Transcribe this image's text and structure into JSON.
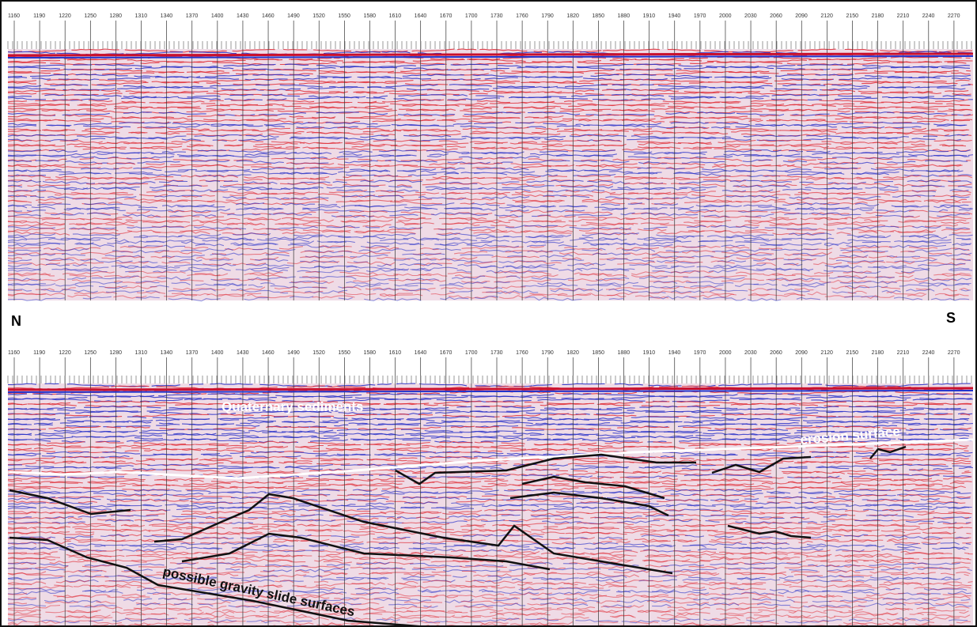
{
  "tick_labels": [
    "1160",
    "1190",
    "1220",
    "1250",
    "1280",
    "1310",
    "1340",
    "1370",
    "1400",
    "1430",
    "1460",
    "1490",
    "1520",
    "1550",
    "1580",
    "1610",
    "1640",
    "1670",
    "1700",
    "1730",
    "1760",
    "1790",
    "1820",
    "1850",
    "1880",
    "1910",
    "1940",
    "1970",
    "2000",
    "2030",
    "2060",
    "2090",
    "2120",
    "2150",
    "2180",
    "2210",
    "2240",
    "2270"
  ],
  "compass": {
    "north": "N",
    "south": "S"
  },
  "annotations": {
    "sediments": "Quaternary sediments",
    "erosion": "erosion surface",
    "slides": "possible gravity slide surfaces"
  }
}
